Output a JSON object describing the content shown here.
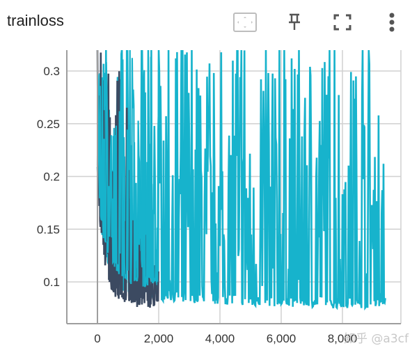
{
  "header": {
    "title": "trainloss",
    "buttons": [
      {
        "name": "fit-domain-button",
        "icon": "fit-to-data-icon"
      },
      {
        "name": "pin-button",
        "icon": "pin-icon"
      },
      {
        "name": "fullscreen-button",
        "icon": "fullscreen-icon"
      },
      {
        "name": "more-menu-button",
        "icon": "more-vert-icon"
      }
    ]
  },
  "watermark": "知乎 @a3cf",
  "colors": {
    "series_dark": "#3c4a61",
    "series_cyan": "#17b3cc",
    "grid": "#d0d0d0",
    "axis": "#9e9e9e"
  },
  "chart_data": {
    "type": "line",
    "title": "trainloss",
    "xlabel": "",
    "ylabel": "",
    "xlim": [
      -1000,
      10000
    ],
    "ylim": [
      0.06,
      0.32
    ],
    "grid": true,
    "legend": "none",
    "x_ticks": [
      "0",
      "2,000",
      "4,000",
      "6,000",
      "8,000"
    ],
    "x_tick_values": [
      0,
      2000,
      4000,
      6000,
      8000
    ],
    "y_ticks": [
      "0.1",
      "0.15",
      "0.2",
      "0.25",
      "0.3"
    ],
    "y_tick_values": [
      0.1,
      0.15,
      0.2,
      0.25,
      0.3
    ],
    "series": [
      {
        "name": "run_dark",
        "color": "#3c4a61",
        "x": [
          0,
          50,
          100,
          150,
          200,
          250,
          300,
          350,
          400,
          450,
          500,
          600,
          700,
          800,
          900,
          1000,
          1100,
          1200,
          1300,
          1400,
          1500,
          1600,
          1700,
          1800,
          1900,
          2000
        ],
        "lower": [
          0.2,
          0.17,
          0.15,
          0.135,
          0.125,
          0.115,
          0.108,
          0.1,
          0.096,
          0.092,
          0.089,
          0.085,
          0.082,
          0.08,
          0.079,
          0.078,
          0.077,
          0.077,
          0.076,
          0.076,
          0.076,
          0.075,
          0.075,
          0.075,
          0.075,
          0.075
        ],
        "upper": [
          0.35,
          0.35,
          0.35,
          0.35,
          0.3,
          0.35,
          0.26,
          0.35,
          0.28,
          0.35,
          0.24,
          0.35,
          0.31,
          0.35,
          0.22,
          0.3,
          0.2,
          0.18,
          0.16,
          0.17,
          0.15,
          0.14,
          0.13,
          0.13,
          0.12,
          0.11
        ]
      },
      {
        "name": "run_cyan",
        "color": "#17b3cc",
        "x_start": 0,
        "x_end": 9400,
        "floor": 0.075,
        "x_points": [
          0,
          100,
          200,
          300,
          400,
          500,
          700,
          900,
          1100,
          1300,
          1500,
          1700,
          1900,
          2100,
          2400,
          2700,
          3000,
          3300,
          3600,
          3900,
          4200,
          4500,
          4800,
          5100,
          5400,
          5700,
          6000,
          6300,
          6600,
          6900,
          7200,
          7500,
          7800,
          8100,
          8400,
          8700,
          9000,
          9200,
          9400
        ],
        "upper_points": [
          0.35,
          0.35,
          0.33,
          0.35,
          0.31,
          0.35,
          0.35,
          0.33,
          0.35,
          0.35,
          0.35,
          0.35,
          0.35,
          0.35,
          0.35,
          0.35,
          0.35,
          0.35,
          0.35,
          0.3,
          0.35,
          0.35,
          0.35,
          0.22,
          0.35,
          0.35,
          0.35,
          0.35,
          0.35,
          0.35,
          0.35,
          0.35,
          0.35,
          0.35,
          0.35,
          0.35,
          0.35,
          0.35,
          0.21
        ],
        "lower_points": [
          0.2,
          0.15,
          0.13,
          0.12,
          0.11,
          0.1,
          0.095,
          0.09,
          0.088,
          0.086,
          0.085,
          0.084,
          0.083,
          0.082,
          0.082,
          0.081,
          0.08,
          0.08,
          0.079,
          0.079,
          0.078,
          0.078,
          0.078,
          0.077,
          0.077,
          0.077,
          0.076,
          0.076,
          0.076,
          0.076,
          0.076,
          0.075,
          0.075,
          0.075,
          0.075,
          0.075,
          0.075,
          0.075,
          0.075
        ]
      }
    ]
  }
}
